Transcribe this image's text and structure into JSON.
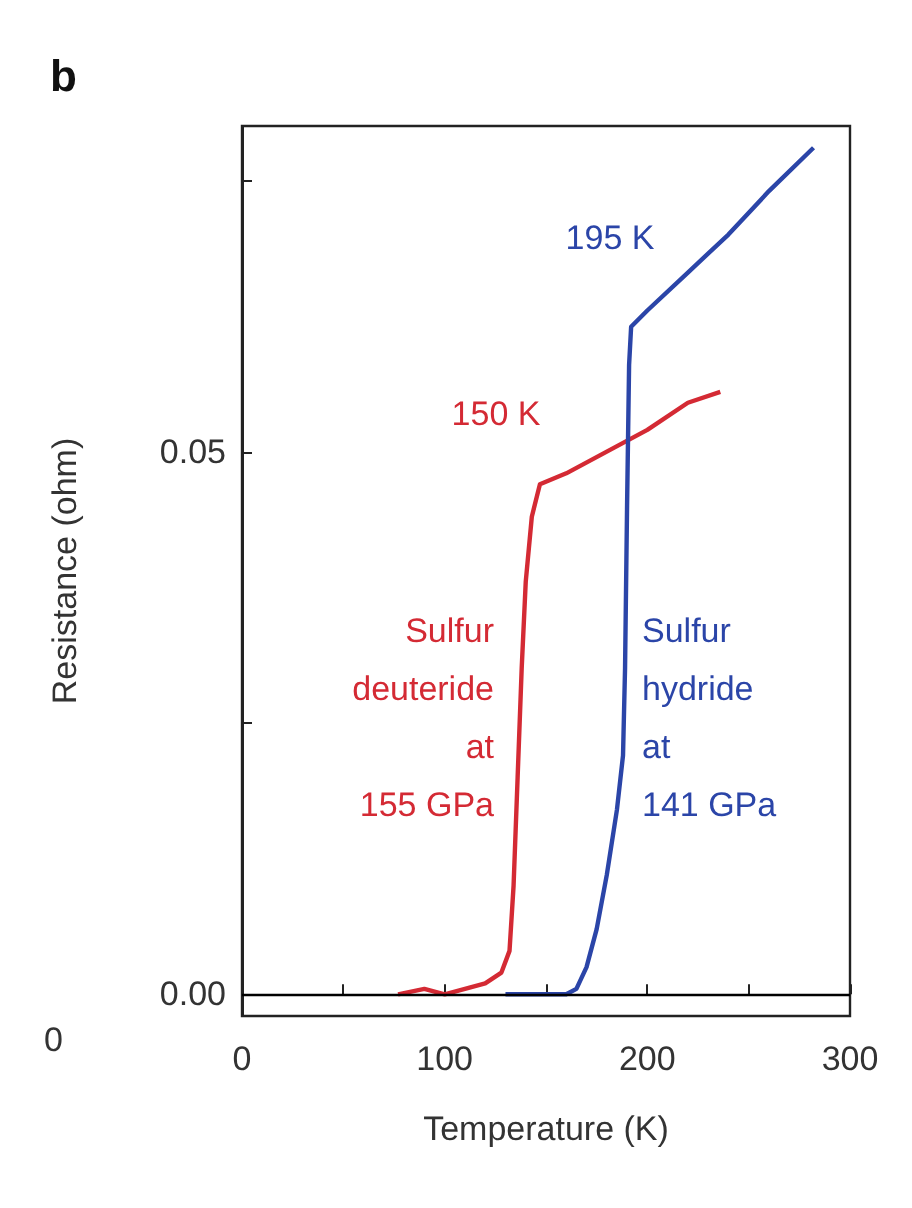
{
  "chart_data": {
    "type": "line",
    "title": "b",
    "xlabel": "Temperature (K)",
    "ylabel": "Resistance (ohm)",
    "xlim": [
      0,
      300
    ],
    "xticks": [
      0,
      {
        "value": 50,
        "label": null
      },
      100,
      {
        "value": 150,
        "label": null
      },
      200,
      {
        "value": 250,
        "label": null
      },
      300
    ],
    "ylim": [
      -0.002,
      0.08
    ],
    "yticks": [
      {
        "value": 0,
        "label": "0.00"
      },
      {
        "value": 0.025,
        "label": null
      },
      {
        "value": 0.05,
        "label": "0.05"
      },
      {
        "value": 0.075,
        "label": null
      }
    ],
    "grid": false,
    "marker": "none",
    "line_style": "solid",
    "ref_lines": [
      {
        "axis": "y",
        "value": 0,
        "color": "#000000"
      }
    ],
    "series": [
      {
        "color": "#d42a34",
        "x": [
          77,
          90,
          100,
          110,
          120,
          128,
          132,
          134,
          136,
          138,
          140,
          143,
          147,
          160,
          180,
          200,
          220,
          236
        ],
        "values": [
          0,
          0.0005,
          0,
          0.0005,
          0.001,
          0.002,
          0.004,
          0.01,
          0.02,
          0.03,
          0.038,
          0.044,
          0.047,
          0.048,
          0.05,
          0.052,
          0.0545,
          0.0555
        ]
      },
      {
        "color": "#2b45a8",
        "x": [
          130,
          140,
          150,
          160,
          165,
          170,
          175,
          180,
          185,
          188,
          189,
          190,
          191,
          192,
          200,
          220,
          240,
          260,
          282
        ],
        "values": [
          0,
          0,
          0,
          0,
          0.0005,
          0.0025,
          0.006,
          0.011,
          0.017,
          0.022,
          0.03,
          0.045,
          0.058,
          0.0615,
          0.063,
          0.0665,
          0.07,
          0.074,
          0.078
        ]
      }
    ],
    "annotations": [
      "195 K",
      "150 K",
      "Sulfur deuteride at 155 GPa",
      "Sulfur hydride at 141 GPa",
      "0"
    ]
  }
}
